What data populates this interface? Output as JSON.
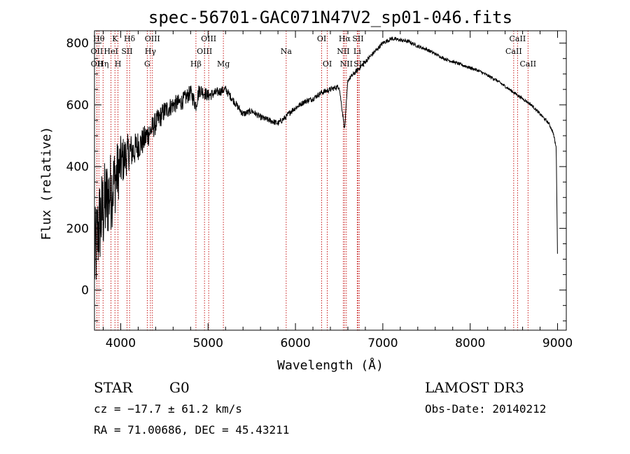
{
  "chart_data": {
    "type": "line",
    "title": "spec-56701-GAC071N47V2_sp01-046.fits",
    "xlabel": "Wavelength (Å)",
    "ylabel": "Flux (relative)",
    "xlim": [
      3700,
      9100
    ],
    "ylim": [
      -130,
      840
    ],
    "xticks": [
      4000,
      5000,
      6000,
      7000,
      8000,
      9000
    ],
    "yticks": [
      0,
      200,
      400,
      600,
      800
    ],
    "spectrum": {
      "x": [
        3700,
        3750,
        3800,
        3850,
        3900,
        3950,
        4000,
        4050,
        4100,
        4150,
        4200,
        4250,
        4300,
        4350,
        4400,
        4450,
        4500,
        4600,
        4700,
        4800,
        4860,
        4900,
        5000,
        5100,
        5200,
        5300,
        5400,
        5500,
        5600,
        5700,
        5800,
        5890,
        5950,
        6000,
        6100,
        6200,
        6300,
        6400,
        6500,
        6563,
        6600,
        6700,
        6800,
        6900,
        7000,
        7100,
        7200,
        7300,
        7400,
        7500,
        7600,
        7700,
        7800,
        7900,
        8000,
        8100,
        8200,
        8300,
        8400,
        8500,
        8600,
        8700,
        8800,
        8900,
        8950,
        8985,
        9000
      ],
      "y": [
        90,
        210,
        260,
        300,
        330,
        370,
        410,
        430,
        450,
        450,
        470,
        480,
        500,
        520,
        540,
        560,
        580,
        600,
        610,
        640,
        600,
        650,
        630,
        640,
        650,
        610,
        570,
        580,
        560,
        550,
        540,
        560,
        580,
        590,
        610,
        620,
        640,
        650,
        660,
        520,
        680,
        710,
        740,
        770,
        800,
        815,
        810,
        805,
        790,
        780,
        765,
        750,
        740,
        730,
        720,
        710,
        695,
        680,
        660,
        640,
        620,
        600,
        570,
        540,
        510,
        460,
        100
      ],
      "noise_amplitude": [
        160,
        150,
        150,
        140,
        130,
        110,
        90,
        70,
        60,
        55,
        50,
        45,
        45,
        40,
        38,
        36,
        34,
        30,
        28,
        26,
        26,
        24,
        20,
        16,
        14,
        12,
        12,
        10,
        10,
        10,
        10,
        10,
        10,
        9,
        9,
        9,
        9,
        9,
        8,
        8,
        8,
        8,
        8,
        7,
        7,
        7,
        6,
        6,
        6,
        6,
        5,
        5,
        5,
        5,
        5,
        5,
        5,
        5,
        5,
        5,
        5,
        5,
        5,
        5,
        5,
        5,
        5
      ]
    },
    "line_markers": [
      {
        "wave": 3750,
        "label": "Hθ",
        "row": 0
      },
      {
        "wave": 3727,
        "label": "OII",
        "row": 1
      },
      {
        "wave": 3728,
        "label": "OII",
        "row": 2
      },
      {
        "wave": 3798,
        "label": "Hη",
        "row": 2
      },
      {
        "wave": 3889,
        "label": "HeI",
        "row": 1
      },
      {
        "wave": 3934,
        "label": "K",
        "row": 0
      },
      {
        "wave": 3969,
        "label": "H",
        "row": 2
      },
      {
        "wave": 4101,
        "label": "Hδ",
        "row": 0
      },
      {
        "wave": 4072,
        "label": "SII",
        "row": 1
      },
      {
        "wave": 4340,
        "label": "Hγ",
        "row": 1
      },
      {
        "wave": 4363,
        "label": "OIII",
        "row": 0
      },
      {
        "wave": 4304,
        "label": "G",
        "row": 2
      },
      {
        "wave": 4861,
        "label": "Hβ",
        "row": 2
      },
      {
        "wave": 4959,
        "label": "OIII",
        "row": 1
      },
      {
        "wave": 5007,
        "label": "OIII",
        "row": 0
      },
      {
        "wave": 5175,
        "label": "Mg",
        "row": 2
      },
      {
        "wave": 5894,
        "label": "Na",
        "row": 1
      },
      {
        "wave": 6300,
        "label": "OI",
        "row": 0
      },
      {
        "wave": 6364,
        "label": "OI",
        "row": 2
      },
      {
        "wave": 6548,
        "label": "NII",
        "row": 1
      },
      {
        "wave": 6563,
        "label": "Hα",
        "row": 0
      },
      {
        "wave": 6583,
        "label": "NII",
        "row": 2
      },
      {
        "wave": 6707,
        "label": "Li",
        "row": 1
      },
      {
        "wave": 6716,
        "label": "SII",
        "row": 0
      },
      {
        "wave": 6731,
        "label": "SII",
        "row": 2
      },
      {
        "wave": 8498,
        "label": "CaII",
        "row": 1
      },
      {
        "wave": 8542,
        "label": "CaII",
        "row": 0
      },
      {
        "wave": 8662,
        "label": "CaII",
        "row": 2
      }
    ]
  },
  "info": {
    "class": "STAR",
    "subclass": "G0",
    "survey": "LAMOST DR3",
    "redshift": "cz = −17.7 ± 61.2 km/s",
    "obs_date": "Obs-Date: 20140212",
    "coords": "RA =  71.00686, DEC =  45.43211"
  },
  "colors": {
    "line_marker": "#c00000",
    "spectrum": "#000000"
  }
}
